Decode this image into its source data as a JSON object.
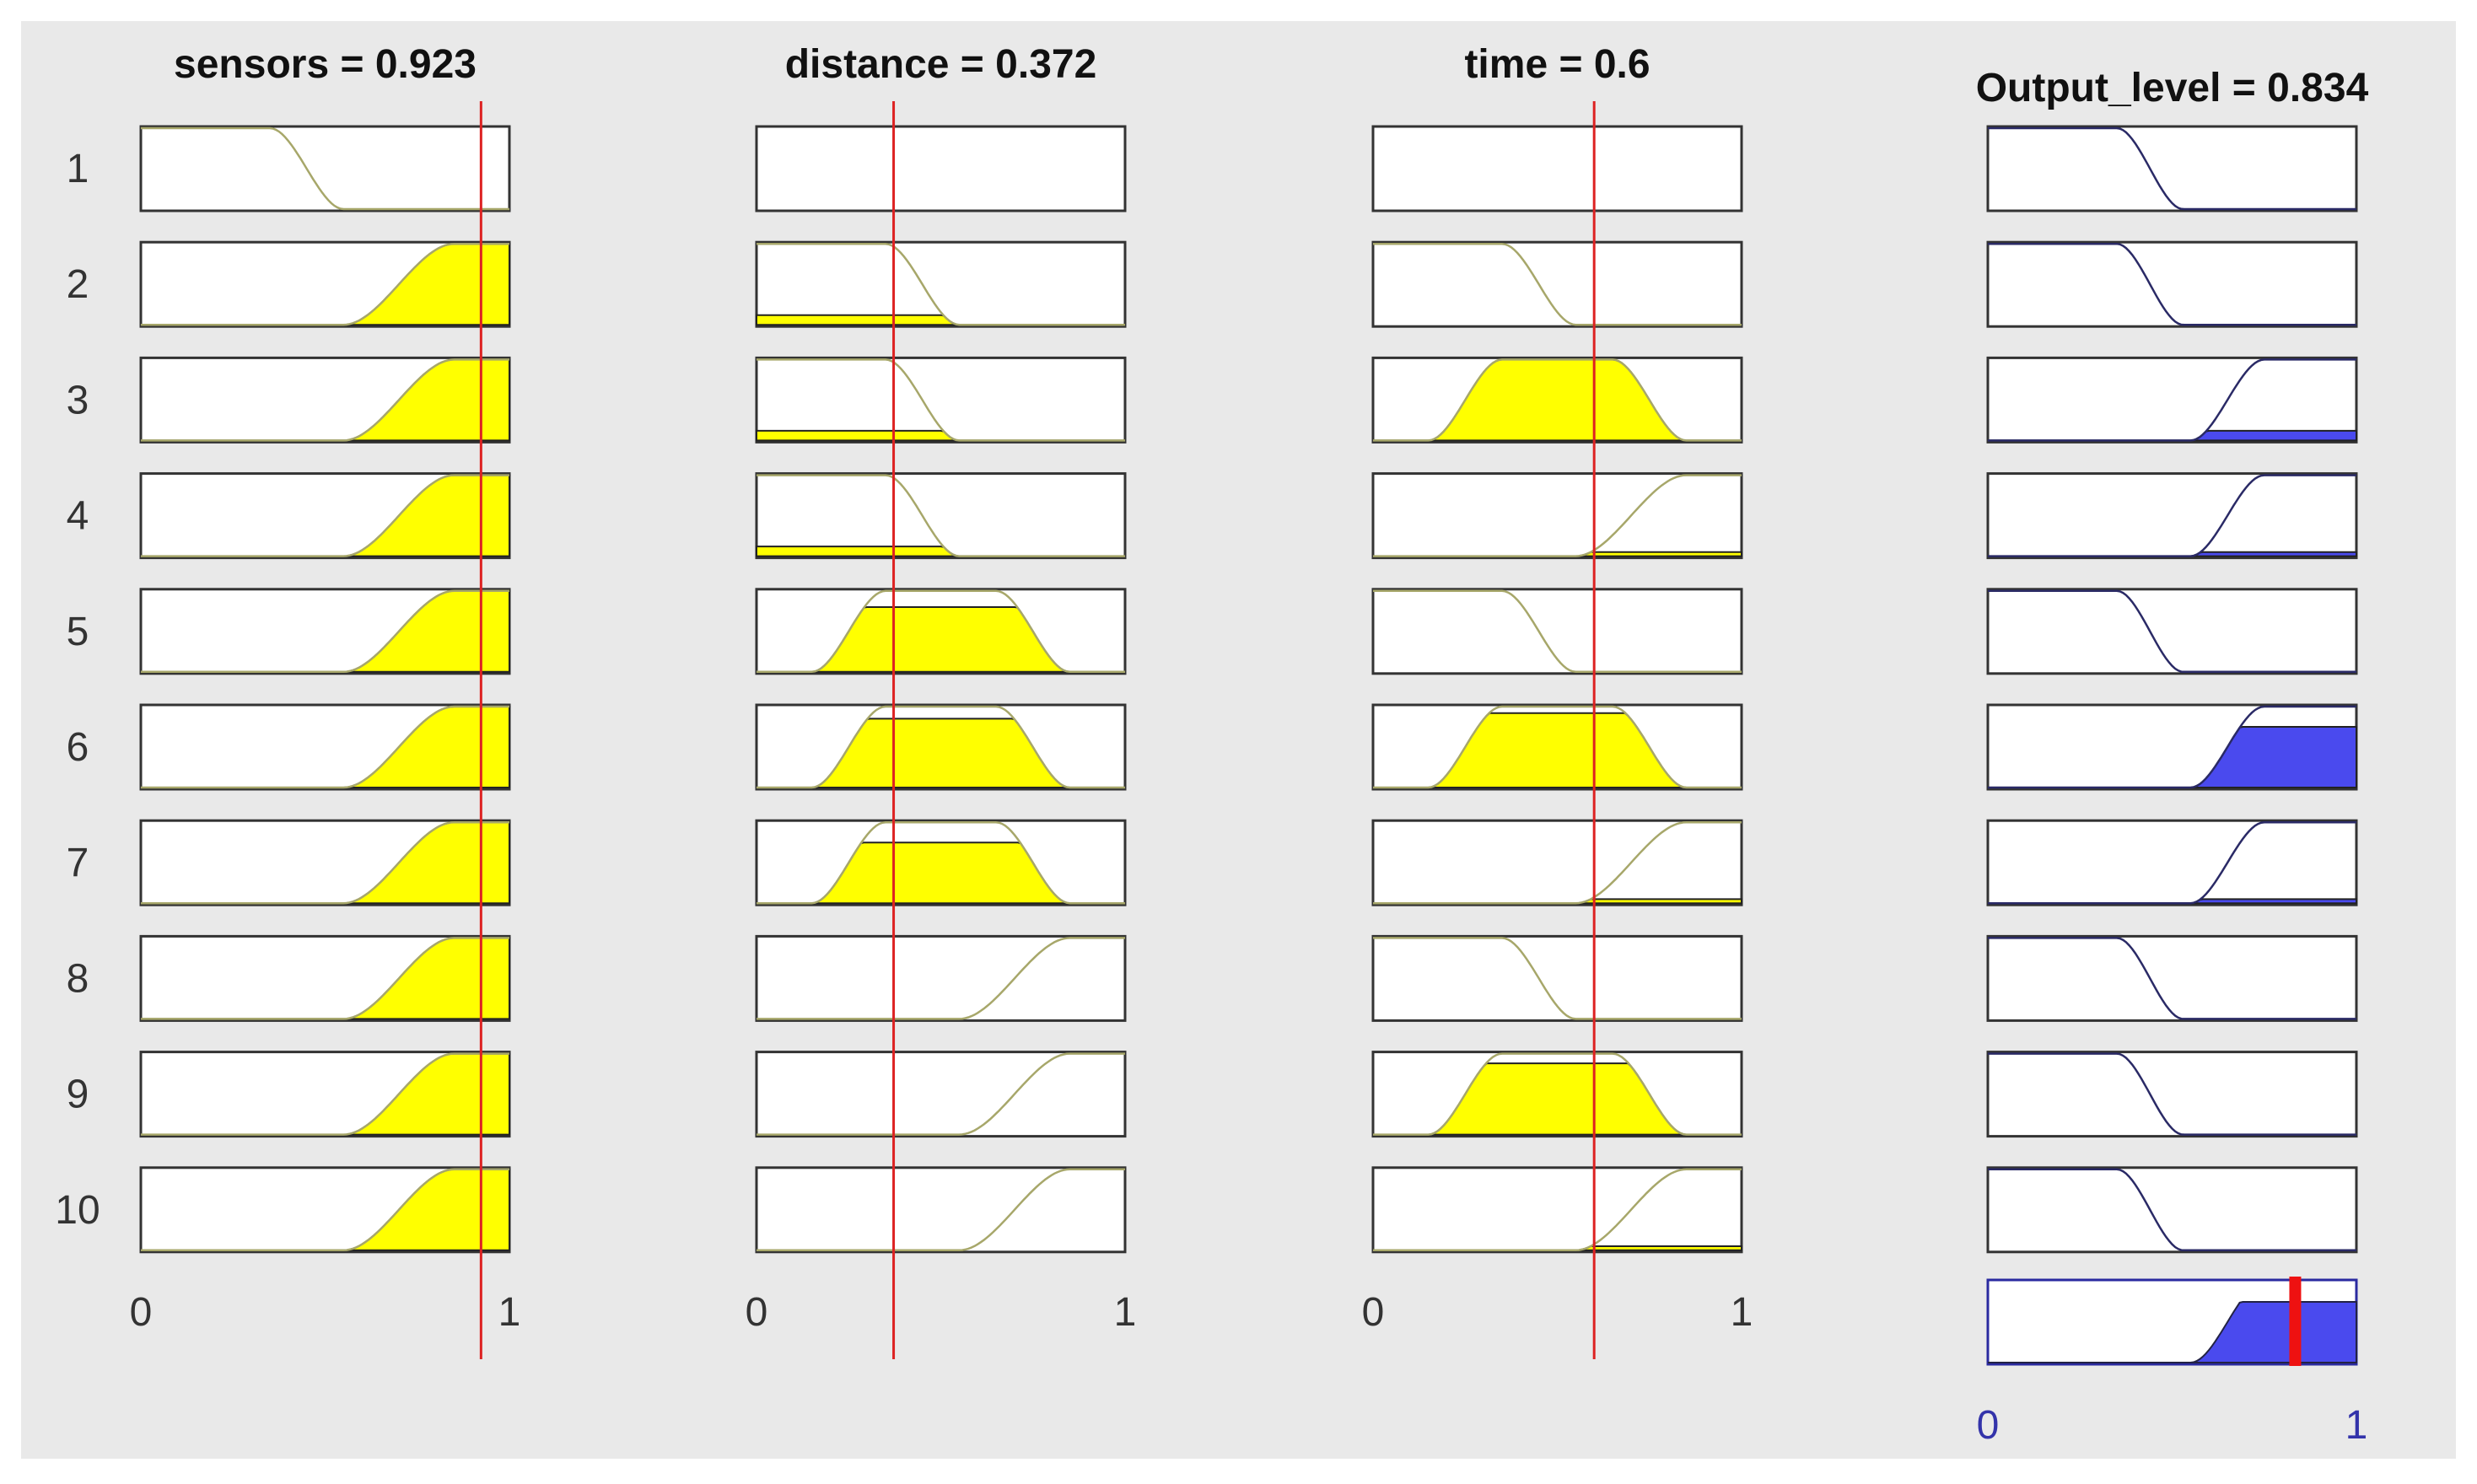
{
  "chart_data": {
    "type": "fuzzy_rule_viewer",
    "rules": [
      "1",
      "2",
      "3",
      "4",
      "5",
      "6",
      "7",
      "8",
      "9",
      "10"
    ],
    "x_ticks": [
      "0",
      "1"
    ],
    "xlim": [
      0,
      1
    ],
    "inputs": [
      {
        "name": "sensors",
        "title": "sensors = 0.923",
        "value": 0.923,
        "mfs": [
          "low",
          "high",
          "high",
          "high",
          "high",
          "high",
          "high",
          "high",
          "high",
          "high"
        ],
        "fill": [
          0,
          1,
          1,
          1,
          1,
          1,
          1,
          1,
          1,
          1
        ]
      },
      {
        "name": "distance",
        "title": "distance = 0.372",
        "value": 0.372,
        "mfs": [
          "none",
          "low",
          "low",
          "low",
          "medium",
          "medium",
          "medium",
          "high",
          "high",
          "high"
        ],
        "fill": [
          0,
          0.12,
          0.12,
          0.12,
          0.8,
          0.85,
          0.75,
          0,
          0,
          0
        ]
      },
      {
        "name": "time",
        "title": "time = 0.6",
        "value": 0.6,
        "mfs": [
          "none",
          "low",
          "medium",
          "high",
          "low",
          "medium",
          "high",
          "low",
          "medium",
          "high"
        ],
        "fill": [
          0,
          0,
          1,
          0.05,
          0,
          0.92,
          0.05,
          0,
          0.88,
          0.05
        ]
      }
    ],
    "output": {
      "name": "Output_level",
      "title": "Output_level = 0.834",
      "value": 0.834,
      "mfs": [
        "low",
        "low",
        "high",
        "high",
        "low",
        "high",
        "high",
        "low",
        "low",
        "low"
      ],
      "fill": [
        0,
        0,
        0.12,
        0.05,
        0,
        0.75,
        0.05,
        0,
        0,
        0
      ],
      "aggregate_level": 0.75
    },
    "colors": {
      "background": "#e9e9e9",
      "input_fill": "#ffff00",
      "input_curve": "#a7a76a",
      "output_fill": "#4a4aee",
      "output_curve": "#2a2a66",
      "indicator": "#dd2222",
      "output_marker": "#ee1111"
    }
  }
}
